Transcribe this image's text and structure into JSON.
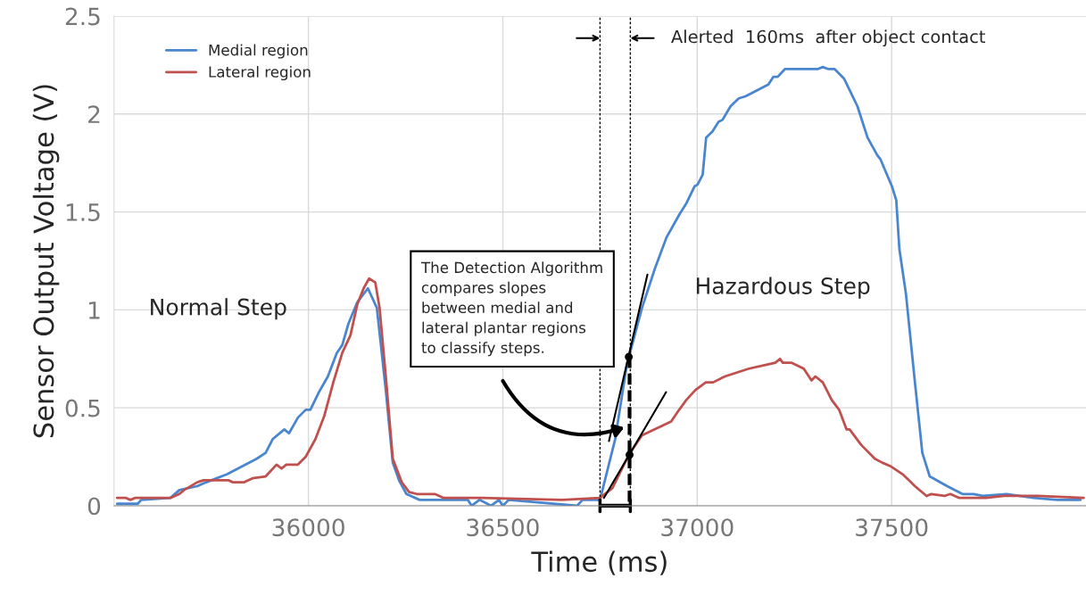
{
  "chart_data": {
    "type": "line",
    "xlabel": "Time (ms)",
    "ylabel": "Sensor Output Voltage (V)",
    "xlim": [
      35500,
      38000
    ],
    "xticks": [
      36000,
      36500,
      37000,
      37500
    ],
    "ylim": [
      0,
      2.5
    ],
    "yticks": [
      0,
      0.5,
      1,
      1.5,
      2,
      2.5
    ],
    "grid": true,
    "legend": "top left",
    "series": [
      {
        "name": "Medial region",
        "color": "#4a86cf",
        "x": [
          35508,
          35561,
          35570,
          35645,
          35668,
          35714,
          35737,
          35790,
          35867,
          35890,
          35908,
          35938,
          35950,
          35973,
          35993,
          36005,
          36027,
          36050,
          36073,
          36087,
          36103,
          36126,
          36153,
          36176,
          36199,
          36217,
          36233,
          36252,
          36286,
          36316,
          36410,
          36420,
          36440,
          36470,
          36490,
          36500,
          36515,
          36691,
          36705,
          36750,
          36789,
          36819,
          36858,
          36891,
          36921,
          36955,
          36971,
          36993,
          37001,
          37014,
          37023,
          37039,
          37055,
          37065,
          37086,
          37107,
          37124,
          37183,
          37196,
          37207,
          37226,
          37311,
          37323,
          37336,
          37353,
          37378,
          37412,
          37438,
          37463,
          37471,
          37501,
          37512,
          37520,
          37537,
          37560,
          37579,
          37598,
          37643,
          37682,
          37711,
          37734,
          37796,
          37865,
          37926,
          37986
        ],
        "values": [
          0.01,
          0.01,
          0.03,
          0.04,
          0.08,
          0.1,
          0.12,
          0.16,
          0.24,
          0.27,
          0.34,
          0.39,
          0.37,
          0.45,
          0.49,
          0.49,
          0.58,
          0.66,
          0.78,
          0.82,
          0.93,
          1.04,
          1.11,
          1.01,
          0.59,
          0.22,
          0.13,
          0.06,
          0.03,
          0.03,
          0.03,
          0.0,
          0.03,
          0.0,
          0.03,
          0.0,
          0.03,
          0.0,
          0.03,
          0.03,
          0.34,
          0.72,
          1.01,
          1.21,
          1.37,
          1.49,
          1.54,
          1.63,
          1.64,
          1.69,
          1.88,
          1.91,
          1.96,
          1.97,
          2.04,
          2.08,
          2.09,
          2.15,
          2.19,
          2.19,
          2.23,
          2.23,
          2.24,
          2.23,
          2.23,
          2.18,
          2.04,
          1.88,
          1.79,
          1.77,
          1.63,
          1.56,
          1.31,
          1.08,
          0.63,
          0.27,
          0.15,
          0.1,
          0.06,
          0.06,
          0.05,
          0.06,
          0.04,
          0.03,
          0.03
        ]
      },
      {
        "name": "Lateral region",
        "color": "#c0504d",
        "x": [
          35508,
          35531,
          35542,
          35554,
          35645,
          35668,
          35680,
          35714,
          35730,
          35794,
          35806,
          35835,
          35856,
          35890,
          35918,
          35931,
          35943,
          35973,
          35993,
          36018,
          36041,
          36064,
          36087,
          36108,
          36126,
          36142,
          36156,
          36172,
          36183,
          36199,
          36217,
          36240,
          36259,
          36279,
          36325,
          36348,
          36446,
          36652,
          36750,
          36782,
          36824,
          36858,
          36933,
          36950,
          36972,
          36995,
          37022,
          37041,
          37071,
          37133,
          37178,
          37201,
          37213,
          37220,
          37243,
          37274,
          37294,
          37304,
          37323,
          37346,
          37365,
          37384,
          37392,
          37422,
          37457,
          37476,
          37499,
          37529,
          37560,
          37590,
          37602,
          37636,
          37651,
          37674,
          37743,
          37789,
          37876,
          37994
        ],
        "values": [
          0.04,
          0.04,
          0.03,
          0.04,
          0.04,
          0.06,
          0.08,
          0.12,
          0.13,
          0.13,
          0.12,
          0.12,
          0.14,
          0.15,
          0.21,
          0.19,
          0.21,
          0.21,
          0.25,
          0.34,
          0.46,
          0.63,
          0.78,
          0.87,
          1.03,
          1.11,
          1.16,
          1.14,
          1.01,
          0.66,
          0.24,
          0.12,
          0.07,
          0.06,
          0.06,
          0.04,
          0.04,
          0.03,
          0.04,
          0.09,
          0.26,
          0.36,
          0.43,
          0.48,
          0.54,
          0.59,
          0.63,
          0.63,
          0.66,
          0.7,
          0.72,
          0.73,
          0.75,
          0.73,
          0.73,
          0.7,
          0.64,
          0.66,
          0.63,
          0.54,
          0.49,
          0.39,
          0.39,
          0.31,
          0.24,
          0.22,
          0.2,
          0.16,
          0.1,
          0.05,
          0.06,
          0.05,
          0.06,
          0.04,
          0.04,
          0.05,
          0.05,
          0.04
        ]
      },
      {
        "type": "line",
        "color": "#000000",
        "x": [
          36773,
          36872
        ],
        "values": [
          0.33,
          1.18
        ]
      },
      {
        "type": "line",
        "color": "#000000",
        "x": [
          36760,
          36920
        ],
        "values": [
          0.04,
          0.58
        ]
      },
      {
        "type": "line",
        "color": "#000000",
        "line_style": "dashed",
        "x": [
          36826,
          36826
        ],
        "values": [
          0.76,
          0
        ]
      },
      {
        "type": "scatter",
        "color": "#000000",
        "marker": "circle",
        "x": [
          36824,
          36826
        ],
        "values": [
          0.76,
          0.26
        ]
      }
    ],
    "ref_lines": [
      {
        "axis": "x",
        "value": 36750,
        "line_style": "dotted",
        "color": "#000000"
      },
      {
        "axis": "x",
        "value": 36828,
        "line_style": "dotted",
        "color": "#000000"
      }
    ],
    "annotations": [
      "Normal Step",
      "Hazardous Step",
      "Alerted  160ms  after object contact",
      "The Detection Algorithm\ncompares slopes\nbetween medial and\nlateral plantar regions\nto classify steps."
    ]
  }
}
